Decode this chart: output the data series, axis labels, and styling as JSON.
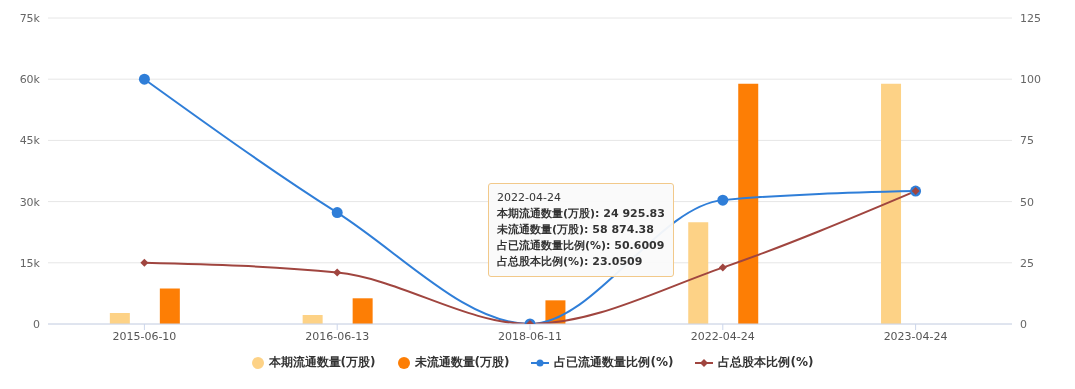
{
  "chart_data": {
    "type": "bar",
    "categories": [
      "2015-06-10",
      "2016-06-13",
      "2018-06-11",
      "2022-04-24",
      "2023-04-24"
    ],
    "series": [
      {
        "name": "本期流通数量(万股)",
        "color": "#fdd286",
        "values": [
          2700,
          2200,
          0,
          24925.83,
          58874.38
        ]
      },
      {
        "name": "未流通数量(万股)",
        "color": "#fd7e05",
        "values": [
          8700,
          6300,
          5800,
          58874.38,
          0
        ]
      },
      {
        "name": "占已流通数量比例(%)",
        "type": "line",
        "axis": "y2",
        "marker": "circle",
        "color": "#2f7ed8",
        "values": [
          100,
          45.5,
          0,
          50.6009,
          54.3
        ]
      },
      {
        "name": "占总股本比例(%)",
        "type": "line",
        "axis": "y2",
        "marker": "diamond",
        "color": "#a0453f",
        "values": [
          25,
          21,
          0,
          23.0509,
          54.3
        ]
      }
    ],
    "ylim": [
      0,
      75000
    ],
    "yticks": [
      0,
      {
        "value": 15000,
        "label": "15k"
      },
      {
        "value": 30000,
        "label": "30k"
      },
      {
        "value": 45000,
        "label": "45k"
      },
      {
        "value": 60000,
        "label": "60k"
      },
      {
        "value": 75000,
        "label": "75k"
      }
    ],
    "y2lim": [
      0,
      125
    ],
    "y2ticks": [
      0,
      25,
      50,
      75,
      100,
      125
    ],
    "grid": "y",
    "legend": "bottom",
    "annotations": [
      "2022-04-24",
      "本期流通数量(万股): 24 925.83",
      "未流通数量(万股): 58 874.38",
      "占已流通数量比例(%): 50.6009",
      "占总股本比例(%): 23.0509"
    ]
  }
}
